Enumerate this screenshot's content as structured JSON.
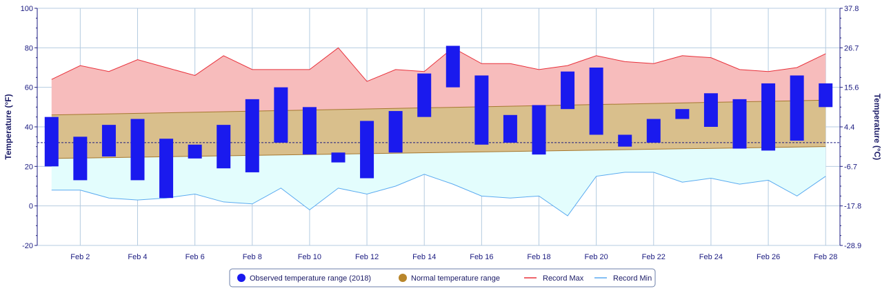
{
  "chart_data": {
    "type": "bar",
    "title": "",
    "ylabel": "Temperature (°F)",
    "ylabel_right": "Temperature (°C)",
    "ylim": [
      -20,
      100
    ],
    "ylim_right": [
      -28.9,
      37.8
    ],
    "yticks": [
      -20,
      0,
      20,
      40,
      60,
      80,
      100
    ],
    "yticks_right": [
      "-28.9",
      "-17.8",
      "-6.7",
      "4.4",
      "15.6",
      "26.7",
      "37.8"
    ],
    "freezing_line": 32,
    "grid": true,
    "x": [
      1,
      2,
      3,
      4,
      5,
      6,
      7,
      8,
      9,
      10,
      11,
      12,
      13,
      14,
      15,
      16,
      17,
      18,
      19,
      20,
      21,
      22,
      23,
      24,
      25,
      26,
      27,
      28
    ],
    "x_tick_labels": [
      "Feb 2",
      "Feb 4",
      "Feb 6",
      "Feb 8",
      "Feb 10",
      "Feb 12",
      "Feb 14",
      "Feb 16",
      "Feb 18",
      "Feb 20",
      "Feb 22",
      "Feb 24",
      "Feb 26",
      "Feb 28"
    ],
    "x_tick_values": [
      2,
      4,
      6,
      8,
      10,
      12,
      14,
      16,
      18,
      20,
      22,
      24,
      26,
      28
    ],
    "series": [
      {
        "name": "Observed temperature range (2018)",
        "color": "#1a1aee",
        "low": [
          20,
          13,
          25,
          13,
          4,
          24,
          19,
          17,
          32,
          26,
          22,
          14,
          27,
          45,
          60,
          31,
          32,
          26,
          49,
          36,
          30,
          32,
          44,
          40,
          29,
          28,
          33,
          50
        ],
        "high": [
          45,
          35,
          41,
          44,
          34,
          31,
          41,
          54,
          60,
          50,
          27,
          43,
          48,
          67,
          81,
          66,
          46,
          51,
          68,
          70,
          36,
          44,
          49,
          57,
          54,
          62,
          66,
          62
        ]
      },
      {
        "name": "Normal temperature range",
        "color": "#b8862b",
        "low_start": 24,
        "low_end": 30,
        "high_start": 46,
        "high_end": 53.5
      },
      {
        "name": "Record Max",
        "color": "#e8303a",
        "values": [
          64,
          71,
          68,
          74,
          70,
          66,
          76,
          69,
          69,
          69,
          80,
          63,
          69,
          68,
          80,
          72,
          72,
          69,
          71,
          76,
          73,
          72,
          76,
          75,
          69,
          68,
          70,
          77
        ]
      },
      {
        "name": "Record Min",
        "color": "#5aaaf0",
        "values": [
          8,
          8,
          4,
          3,
          4,
          6,
          2,
          1,
          9,
          -2,
          9,
          6,
          10,
          16,
          11,
          5,
          4,
          5,
          -5,
          15,
          17,
          17,
          12,
          14,
          11,
          13,
          5,
          15
        ]
      }
    ],
    "legend": {
      "placement": "bottom-center",
      "items": [
        {
          "label": "Observed temperature range (2018)",
          "color": "#1a1aee",
          "shape": "circle"
        },
        {
          "label": "Normal temperature range",
          "color": "#b8862b",
          "shape": "circle"
        },
        {
          "label": "Record Max",
          "color": "#e8303a",
          "shape": "line"
        },
        {
          "label": "Record Min",
          "color": "#5aaaf0",
          "shape": "line"
        }
      ]
    }
  }
}
